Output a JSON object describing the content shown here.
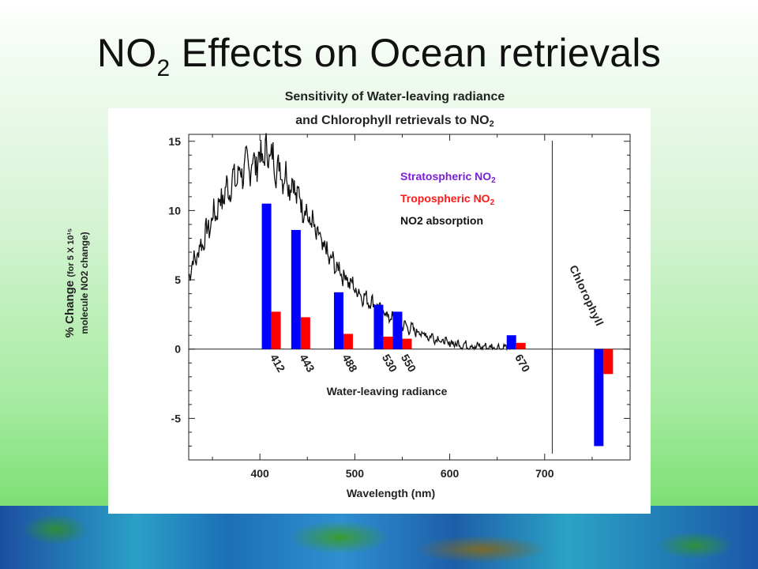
{
  "slide": {
    "title_main": "NO",
    "title_sub": "2",
    "title_rest": " Effects on Ocean retrievals"
  },
  "chart_data": {
    "type": "bar",
    "title_line1": "Sensitivity of Water-leaving radiance",
    "title_line2_main": "and Chlorophyll retrievals to NO",
    "title_line2_sub": "2",
    "ylabel_line1_main": "% Change",
    "ylabel_line1_small": "(for 5 X 10¹⁵",
    "ylabel_line2": "molecule NO2 change)",
    "xlabel": "Wavelength (nm)",
    "xlim": [
      325,
      790
    ],
    "ylim": [
      -8,
      15.5
    ],
    "x_ticks": [
      400,
      500,
      600,
      700
    ],
    "y_ticks": [
      15,
      10,
      5,
      0,
      -5
    ],
    "grid": false,
    "legend_position": "top-center",
    "legend": [
      {
        "main": "Stratospheric NO",
        "sub": "2",
        "color": "#7a1fd6"
      },
      {
        "main": "Tropospheric NO",
        "sub": "2",
        "color": "#ff1a1a"
      },
      {
        "main": "NO2 absorption",
        "sub": "",
        "color": "#111111"
      }
    ],
    "series_colors": {
      "stratospheric": "#0000ff",
      "tropospheric": "#ff0000"
    },
    "bands": [
      {
        "label": "412",
        "wavelength": 412,
        "stratospheric": 10.5,
        "tropospheric": 2.7
      },
      {
        "label": "443",
        "wavelength": 443,
        "stratospheric": 8.6,
        "tropospheric": 2.3
      },
      {
        "label": "488",
        "wavelength": 488,
        "stratospheric": 4.1,
        "tropospheric": 1.1
      },
      {
        "label": "530",
        "wavelength": 530,
        "stratospheric": 3.2,
        "tropospheric": 0.9
      },
      {
        "label": "550",
        "wavelength": 550,
        "stratospheric": 2.7,
        "tropospheric": 0.75
      },
      {
        "label": "670",
        "wavelength": 670,
        "stratospheric": 1.0,
        "tropospheric": 0.45
      }
    ],
    "chlorophyll": {
      "label": "Chlorophyll",
      "stratospheric": -7.0,
      "tropospheric": -1.8
    },
    "water_leaving_label": "Water-leaving radiance",
    "absorption_curve": {
      "x": [
        325,
        335,
        345,
        355,
        365,
        375,
        385,
        395,
        405,
        410,
        415,
        425,
        435,
        445,
        455,
        465,
        475,
        485,
        495,
        505,
        515,
        525,
        535,
        545,
        555,
        565,
        575,
        585,
        595,
        605,
        615,
        625,
        635,
        645,
        655,
        665
      ],
      "y": [
        5.5,
        7.0,
        8.6,
        10.2,
        11.5,
        12.4,
        13.1,
        13.5,
        14.0,
        14.2,
        13.4,
        12.6,
        11.8,
        10.4,
        9.0,
        7.6,
        6.4,
        5.6,
        4.8,
        4.0,
        3.5,
        3.0,
        2.4,
        1.9,
        1.6,
        1.3,
        1.0,
        0.8,
        0.5,
        0.4,
        0.3,
        0.2,
        0.15,
        0.1,
        0.1,
        0.05
      ]
    }
  }
}
